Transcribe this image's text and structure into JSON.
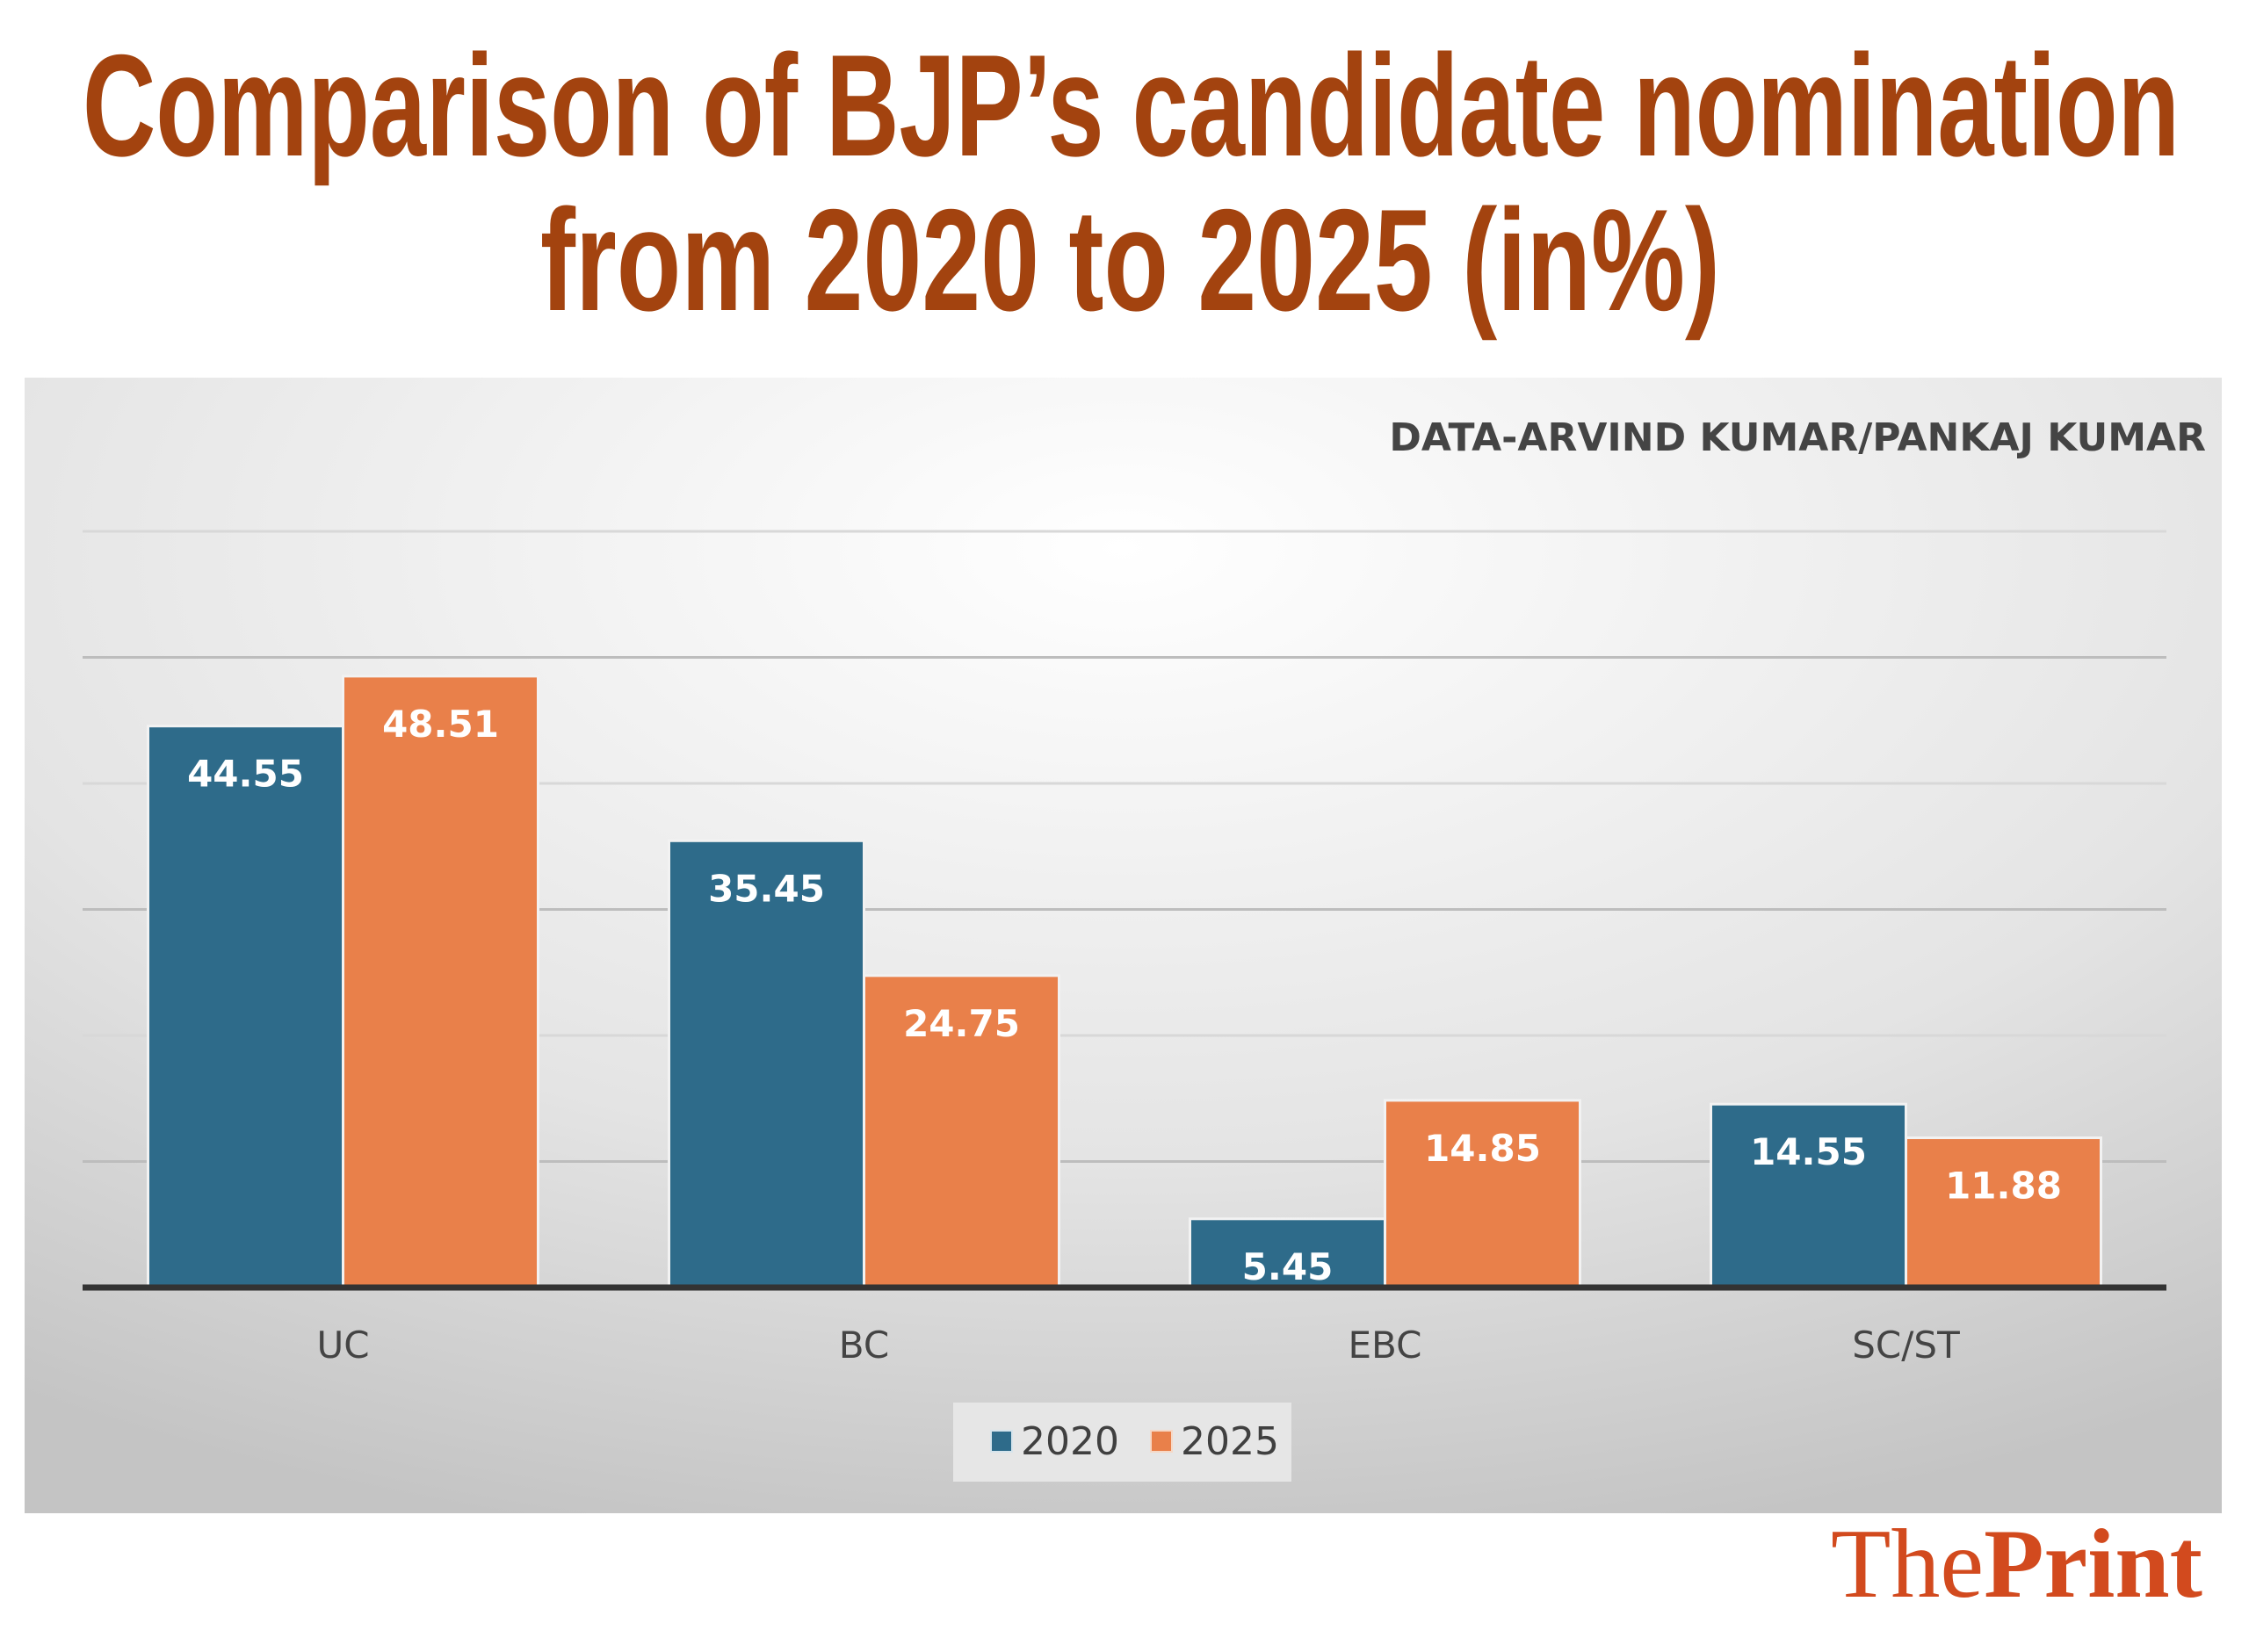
{
  "title_lines": [
    "Comparison of BJP’s candidate nomination",
    "from 2020 to 2025 (in%)"
  ],
  "source": "DATA-ARVIND KUMAR/PANKAJ KUMAR",
  "logo": {
    "light": "The",
    "bold": "Print"
  },
  "chart_data": {
    "type": "bar",
    "title": "Comparison of BJP’s candidate nomination from 2020 to 2025 (in%)",
    "categories": [
      "UC",
      "BC",
      "EBC",
      "SC/ST"
    ],
    "series": [
      {
        "name": "2020",
        "values": [
          44.55,
          35.45,
          5.45,
          14.55
        ],
        "color": "#2e6b8a"
      },
      {
        "name": "2025",
        "values": [
          48.51,
          24.75,
          14.85,
          11.88
        ],
        "color": "#e9804a"
      }
    ],
    "ylim": [
      0,
      60
    ],
    "grid": true,
    "y_tick_labels_shown": false,
    "legend": "bottom",
    "data_labels": true
  }
}
